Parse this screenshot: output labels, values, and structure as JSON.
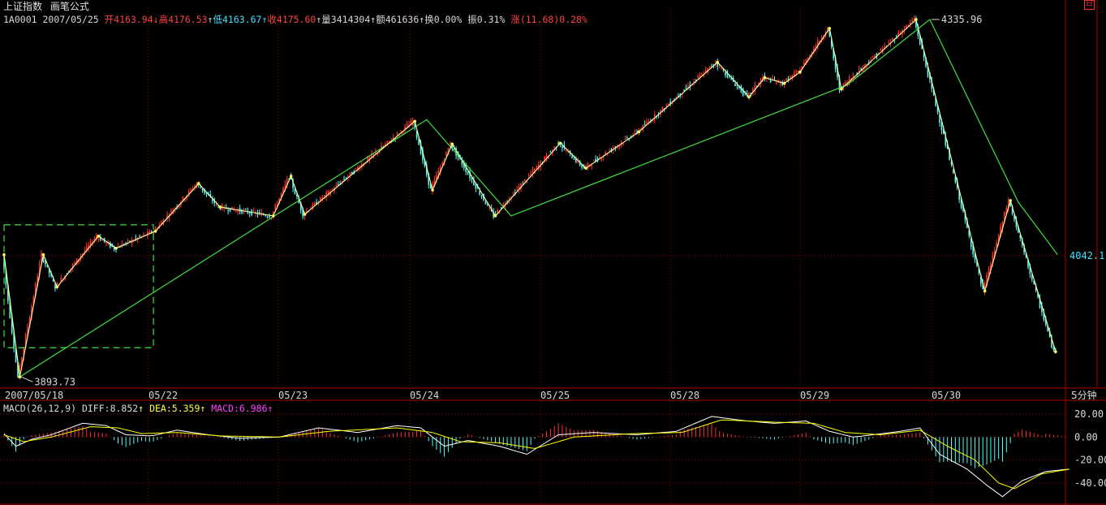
{
  "header": {
    "title": "上证指数",
    "formula_label": "画笔公式",
    "code": "1A0001",
    "date": "2007/05/25",
    "open_label": "开",
    "open": "4163.94",
    "high_label": "高",
    "high": "4176.53",
    "low_label": "低",
    "low": "4163.67",
    "close_label": "收",
    "close": "4175.60",
    "volume_label": "量",
    "volume": "3414304",
    "amount_label": "额",
    "amount": "461636",
    "turnover_label": "换",
    "turnover": "0.00%",
    "amplitude_label": "振",
    "amplitude": "0.31%",
    "change_label": "涨",
    "change": "(11.68)",
    "change_pct": "0.28%",
    "arrow_down": "↓",
    "arrow_up": "↑"
  },
  "period_label": "5分钟",
  "restore_icon_label": "日",
  "macd_header": {
    "name": "MACD(26,12,9)",
    "diff_label": "DIFF:",
    "diff": "8.852",
    "dea_label": "DEA:",
    "dea": "5.359",
    "macd_label": "MACD:",
    "macd": "6.986",
    "arrow": "↑"
  },
  "colors": {
    "background": "#000000",
    "up": "#ff3232",
    "down": "#54fcfc",
    "frame": "#b00000",
    "pen_stroke": "#ffffa0",
    "segment_stroke": "#40e040",
    "diff_line": "#ffffff",
    "dea_line": "#ffff00",
    "price_marker": "#40e0ff"
  },
  "chart_data": [
    {
      "type": "candlestick",
      "title": "上证指数 5分钟",
      "x_ticks": [
        "2007/05/18",
        "05/22",
        "05/23",
        "05/24",
        "05/25",
        "05/28",
        "05/29",
        "05/30"
      ],
      "price_labels": [
        {
          "label": "4335.96",
          "value": 4335.96,
          "kind": "high"
        },
        {
          "label": "3893.73",
          "value": 3893.73,
          "kind": "low"
        },
        {
          "label": "4042.1",
          "value": 4042.1,
          "kind": "current"
        }
      ],
      "ylim": [
        3880,
        4350
      ],
      "pen_pivots": [
        [
          0,
          4045
        ],
        [
          8,
          3893.73
        ],
        [
          20,
          4045
        ],
        [
          27,
          4005
        ],
        [
          48,
          4068
        ],
        [
          57,
          4053
        ],
        [
          77,
          4074
        ],
        [
          99,
          4133
        ],
        [
          110,
          4104
        ],
        [
          137,
          4093
        ],
        [
          146,
          4142
        ],
        [
          153,
          4095
        ],
        [
          209,
          4210
        ],
        [
          218,
          4125
        ],
        [
          228,
          4182
        ],
        [
          250,
          4093
        ],
        [
          283,
          4183
        ],
        [
          296,
          4152
        ],
        [
          323,
          4197
        ],
        [
          363,
          4283
        ],
        [
          379,
          4240
        ],
        [
          387,
          4264
        ],
        [
          397,
          4257
        ],
        [
          405,
          4271
        ],
        [
          420,
          4325
        ],
        [
          426,
          4250
        ],
        [
          464,
          4335.96
        ],
        [
          499,
          4000
        ],
        [
          512,
          4112
        ],
        [
          535,
          3925
        ]
      ],
      "segment_pivots": [
        [
          0,
          4045
        ],
        [
          8,
          3893.73
        ],
        [
          215,
          4212
        ],
        [
          258,
          4093
        ],
        [
          429,
          4255
        ],
        [
          471,
          4335.96
        ],
        [
          516,
          4110
        ],
        [
          536,
          4045
        ]
      ],
      "dashed_box": {
        "x": [
          0,
          76
        ],
        "y": [
          3930,
          4082
        ]
      }
    },
    {
      "type": "bar",
      "title": "MACD(26,12,9)",
      "yticks": [
        20.0,
        0.0,
        -20.0,
        -40.0
      ],
      "ylim": [
        -55,
        25
      ],
      "diff": 8.852,
      "dea": 5.359,
      "macd": 6.986,
      "diff_keyframes": [
        [
          0,
          3
        ],
        [
          6,
          -8
        ],
        [
          14,
          -2
        ],
        [
          24,
          2
        ],
        [
          40,
          12
        ],
        [
          52,
          10
        ],
        [
          62,
          2
        ],
        [
          75,
          1
        ],
        [
          88,
          6
        ],
        [
          104,
          2
        ],
        [
          120,
          -1
        ],
        [
          140,
          0
        ],
        [
          160,
          8
        ],
        [
          180,
          4
        ],
        [
          200,
          10
        ],
        [
          212,
          8
        ],
        [
          224,
          -8
        ],
        [
          236,
          -3
        ],
        [
          252,
          -8
        ],
        [
          266,
          -15
        ],
        [
          282,
          2
        ],
        [
          300,
          4
        ],
        [
          322,
          2
        ],
        [
          342,
          5
        ],
        [
          360,
          18
        ],
        [
          378,
          14
        ],
        [
          392,
          12
        ],
        [
          408,
          14
        ],
        [
          420,
          5
        ],
        [
          432,
          0
        ],
        [
          442,
          2
        ],
        [
          456,
          5
        ],
        [
          466,
          8
        ],
        [
          476,
          -15
        ],
        [
          490,
          -28
        ],
        [
          500,
          -42
        ],
        [
          508,
          -52
        ],
        [
          518,
          -38
        ],
        [
          530,
          -30
        ],
        [
          542,
          -28
        ]
      ],
      "dea_keyframes": [
        [
          0,
          2
        ],
        [
          10,
          -4
        ],
        [
          24,
          0
        ],
        [
          44,
          9
        ],
        [
          58,
          8
        ],
        [
          70,
          3
        ],
        [
          88,
          4
        ],
        [
          110,
          1
        ],
        [
          140,
          0
        ],
        [
          165,
          5
        ],
        [
          200,
          8
        ],
        [
          218,
          4
        ],
        [
          232,
          -4
        ],
        [
          252,
          -5
        ],
        [
          270,
          -10
        ],
        [
          290,
          0
        ],
        [
          320,
          3
        ],
        [
          345,
          4
        ],
        [
          365,
          15
        ],
        [
          392,
          13
        ],
        [
          412,
          12
        ],
        [
          428,
          4
        ],
        [
          446,
          2
        ],
        [
          466,
          6
        ],
        [
          480,
          -8
        ],
        [
          494,
          -20
        ],
        [
          506,
          -40
        ],
        [
          514,
          -45
        ],
        [
          528,
          -32
        ],
        [
          542,
          -28
        ]
      ]
    }
  ]
}
